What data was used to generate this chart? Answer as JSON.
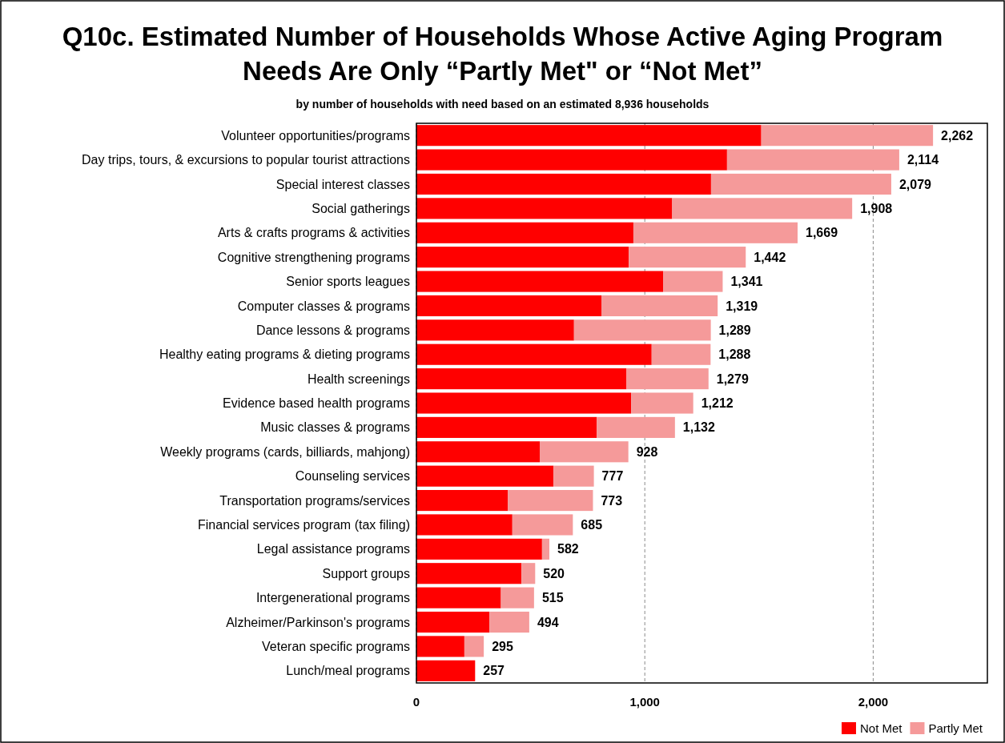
{
  "chart_data": {
    "type": "bar",
    "orientation": "horizontal",
    "stacked": true,
    "title": "Q10c. Estimated Number of Households Whose Active Aging Program Needs Are Only “Partly Met\" or “Not Met”",
    "subtitle": "by number of households with need based on an estimated 8,936 households",
    "categories": [
      "Volunteer opportunities/programs",
      "Day trips, tours, & excursions to popular tourist attractions",
      "Special interest classes",
      "Social gatherings",
      "Arts & crafts programs & activities",
      "Cognitive strengthening programs",
      "Senior sports leagues",
      "Computer classes & programs",
      "Dance lessons & programs",
      "Healthy eating programs & dieting programs",
      "Health screenings",
      "Evidence based health programs",
      "Music classes & programs",
      "Weekly programs (cards, billiards, mahjong)",
      "Counseling services",
      "Transportation programs/services",
      "Financial services program (tax filing)",
      "Legal assistance programs",
      "Support groups",
      "Intergenerational programs",
      "Alzheimer/Parkinson's programs",
      "Veteran specific programs",
      "Lunch/meal programs"
    ],
    "series": [
      {
        "name": "Not Met",
        "color": "#ff0000",
        "values": [
          1510,
          1360,
          1290,
          1120,
          950,
          930,
          1080,
          810,
          690,
          1030,
          920,
          940,
          790,
          540,
          600,
          400,
          420,
          550,
          460,
          370,
          320,
          210,
          257
        ]
      },
      {
        "name": "Partly Met",
        "color": "#f59a9a",
        "values": [
          752,
          754,
          789,
          788,
          719,
          512,
          261,
          509,
          599,
          258,
          359,
          272,
          342,
          388,
          177,
          373,
          265,
          32,
          60,
          145,
          174,
          85,
          0
        ]
      }
    ],
    "totals": [
      "2,262",
      "2,114",
      "2,079",
      "1,908",
      "1,669",
      "1,442",
      "1,341",
      "1,319",
      "1,289",
      "1,288",
      "1,279",
      "1,212",
      "1,132",
      "928",
      "777",
      "773",
      "685",
      "582",
      "520",
      "515",
      "494",
      "295",
      "257"
    ],
    "xlim": [
      0,
      2500
    ],
    "xticks": [
      0,
      {
        "value": 1000,
        "label": "1,000"
      },
      {
        "value": 2000,
        "label": "2,000"
      }
    ],
    "grid": "x",
    "legend": "bottom right"
  }
}
